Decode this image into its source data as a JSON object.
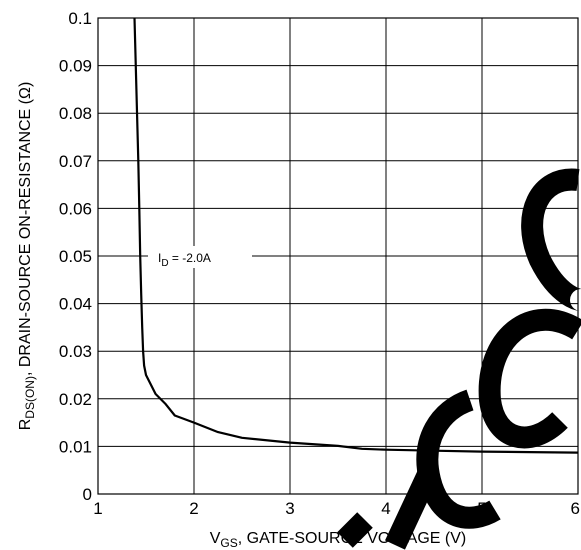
{
  "chart_data": {
    "type": "line",
    "title": "",
    "xlabel": {
      "main": "V",
      "sub": "GS",
      "rest": ", GATE-SOURCE VOLTAGE (V)"
    },
    "ylabel": {
      "main": "R",
      "sub": "DS(ON)",
      "rest": ", DRAIN-SOURCE ON-RESISTANCE (Ω)"
    },
    "xlim": [
      1,
      6
    ],
    "ylim": [
      0,
      0.1
    ],
    "x_ticks": [
      "1",
      "2",
      "3",
      "4",
      "5",
      "6"
    ],
    "y_ticks": [
      "0",
      "0.01",
      "0.02",
      "0.03",
      "0.04",
      "0.05",
      "0.06",
      "0.07",
      "0.08",
      "0.09",
      "0.1"
    ],
    "grid": true,
    "annotation": {
      "main": "I",
      "sub": "D",
      "rest": " = -2.0A"
    },
    "series": [
      {
        "x": [
          1.38,
          1.4,
          1.42,
          1.43,
          1.44,
          1.45,
          1.46,
          1.47,
          1.48,
          1.5,
          1.55,
          1.6,
          1.7,
          1.8,
          2.0,
          2.25,
          2.5,
          3.0,
          3.5,
          3.75,
          4.0,
          4.5,
          5.0,
          5.5,
          6.0
        ],
        "y": [
          0.1,
          0.085,
          0.07,
          0.06,
          0.05,
          0.042,
          0.035,
          0.03,
          0.027,
          0.025,
          0.023,
          0.021,
          0.019,
          0.0165,
          0.015,
          0.013,
          0.0118,
          0.0108,
          0.0101,
          0.0095,
          0.0093,
          0.0091,
          0.0089,
          0.0088,
          0.0087
        ]
      }
    ]
  }
}
